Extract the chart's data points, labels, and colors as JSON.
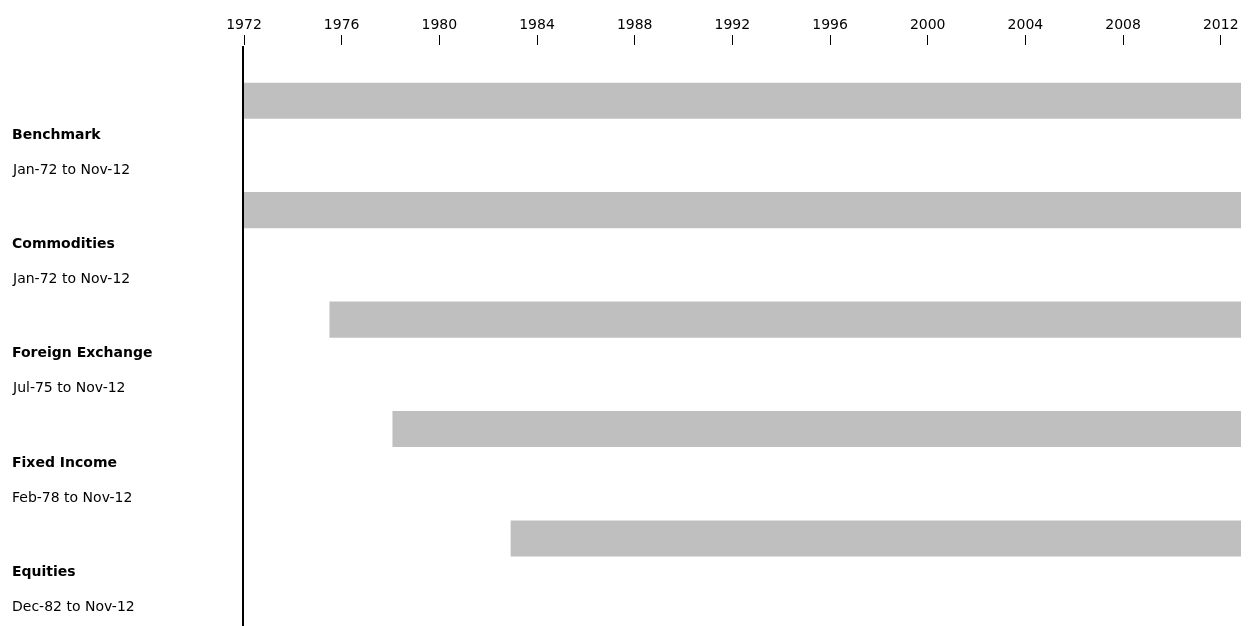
{
  "chart_data": {
    "type": "bar",
    "orientation": "horizontal",
    "color": "#bfbfbf",
    "categories": [
      "Benchmark",
      "Commodities",
      "Foreign Exchange",
      "Fixed Income",
      "Equities"
    ],
    "base": [
      1972,
      1972,
      1975.5,
      1978.08,
      1982.92
    ],
    "values": [
      40.83,
      40.83,
      37.33,
      34.75,
      29.91
    ],
    "annotations": [
      "Jan-72 to Nov-12",
      "Jan-72 to Nov-12",
      "Jul-75 to Nov-12",
      "Feb-78 to Nov-12",
      "Dec-82 to Nov-12"
    ],
    "xlim": [
      1972,
      2012.83
    ],
    "xticks": [
      1972,
      1976,
      1980,
      1984,
      1988,
      1992,
      1996,
      2000,
      2004,
      2008,
      2012
    ],
    "grid": false
  }
}
